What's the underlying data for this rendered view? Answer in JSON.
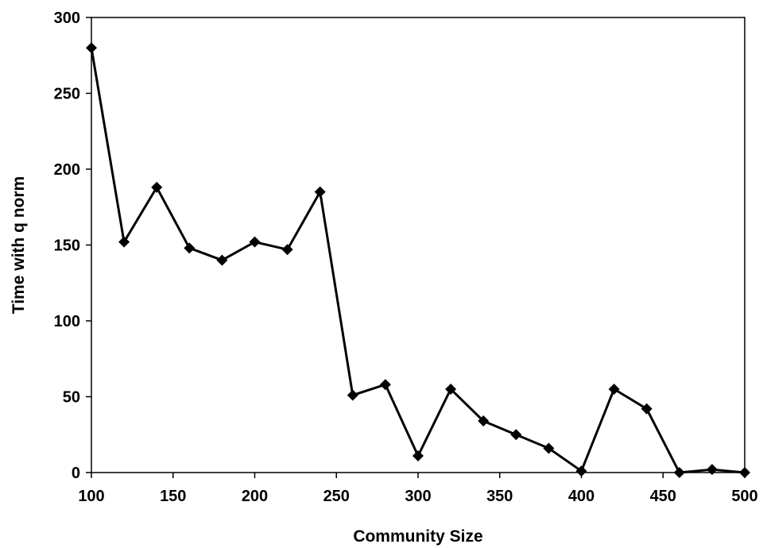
{
  "chart_data": {
    "type": "line",
    "title": "",
    "xlabel": "Community Size",
    "ylabel": "Time with q norm",
    "x": [
      100,
      120,
      140,
      160,
      180,
      200,
      220,
      240,
      260,
      280,
      300,
      320,
      340,
      360,
      380,
      400,
      420,
      440,
      460,
      480,
      500
    ],
    "y": [
      280,
      152,
      188,
      148,
      140,
      152,
      147,
      185,
      51,
      58,
      11,
      55,
      34,
      25,
      16,
      1,
      55,
      42,
      0,
      2,
      0
    ],
    "xlim": [
      100,
      500
    ],
    "ylim": [
      0,
      300
    ],
    "x_ticks": [
      "100",
      "150",
      "200",
      "250",
      "300",
      "350",
      "400",
      "450",
      "500"
    ],
    "y_ticks": [
      "0",
      "50",
      "100",
      "150",
      "200",
      "250",
      "300"
    ],
    "grid": false,
    "legend": "none",
    "marker": "diamond",
    "line_color": "#000000",
    "marker_color": "#000000"
  }
}
